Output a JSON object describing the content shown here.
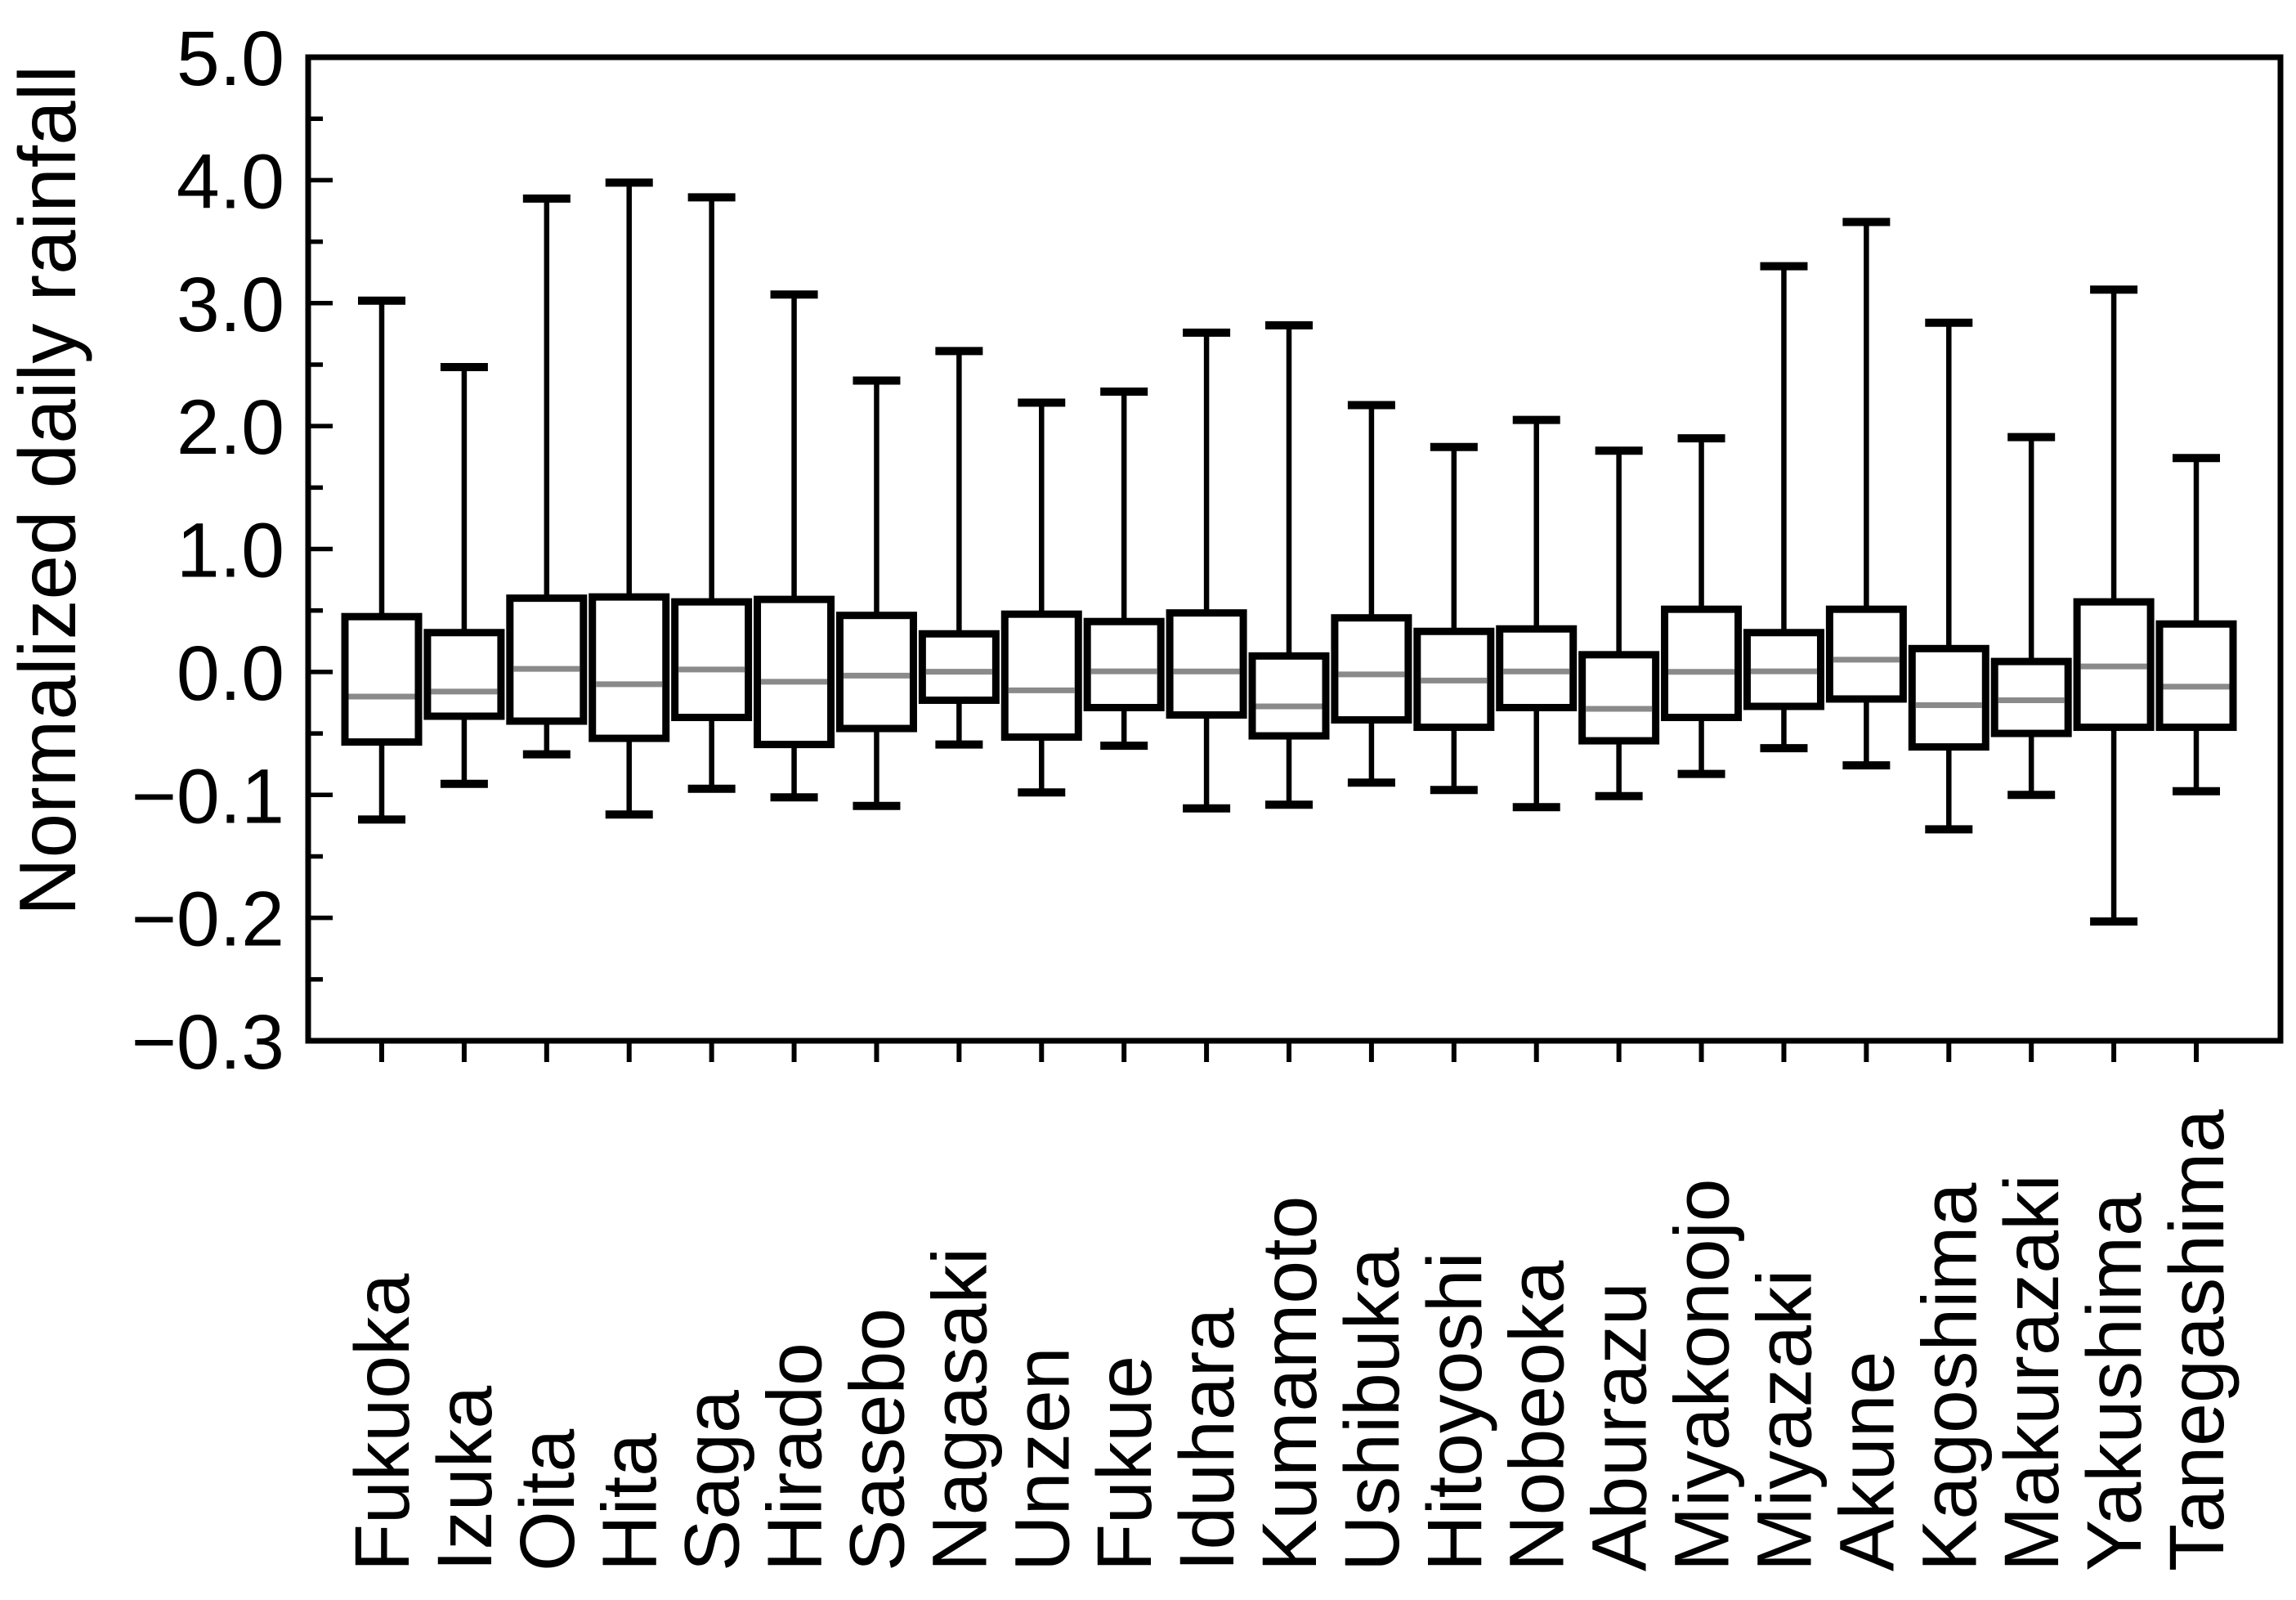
{
  "figure": {
    "background": "#ffffff",
    "frame_color": "#000000",
    "box_fill": "#ffffff",
    "box_stroke": "#000000",
    "median_color": "#8a8a8a",
    "whisker_color": "#000000"
  },
  "chart_data": {
    "type": "box",
    "title": "",
    "xlabel": "",
    "ylabel": "Normalized daily rainfall",
    "grid": false,
    "legend": "none",
    "y_tick_labels": [
      "5.0",
      "4.0",
      "3.0",
      "2.0",
      "1.0",
      "0.0",
      "−0.1",
      "−0.2",
      "−0.3"
    ],
    "y_tick_values": [
      5.0,
      4.0,
      3.0,
      2.0,
      1.0,
      0.0,
      -0.1,
      -0.2,
      -0.3
    ],
    "y_axis_note": "equally spaced tick divisions; 1.0 per division above zero, 0.1 per division below zero; minor tick at each half division",
    "categories": [
      "Fukuoka",
      "Izuka",
      "Oita",
      "Hita",
      "Saga",
      "Hirado",
      "Sasebo",
      "Nagasaki",
      "Unzen",
      "Fukue",
      "Iduhara",
      "Kumamoto",
      "Ushibuka",
      "Hitoyoshi",
      "Nobeoka",
      "Aburazu",
      "Miyakonojo",
      "Miyazaki",
      "Akune",
      "Kagoshima",
      "Makurazaki",
      "Yakushima",
      "Tanegashima"
    ],
    "boxes": [
      {
        "name": "Fukuoka",
        "whisker_low": -0.12,
        "q1": -0.057,
        "median": -0.02,
        "q3": 0.45,
        "whisker_high": 3.02
      },
      {
        "name": "Izuka",
        "whisker_low": -0.091,
        "q1": -0.036,
        "median": -0.016,
        "q3": 0.32,
        "whisker_high": 2.48
      },
      {
        "name": "Oita",
        "whisker_low": -0.067,
        "q1": -0.04,
        "median": 0.025,
        "q3": 0.6,
        "whisker_high": 3.85
      },
      {
        "name": "Hita",
        "whisker_low": -0.116,
        "q1": -0.054,
        "median": -0.01,
        "q3": 0.61,
        "whisker_high": 3.98
      },
      {
        "name": "Saga",
        "whisker_low": -0.095,
        "q1": -0.037,
        "median": 0.02,
        "q3": 0.57,
        "whisker_high": 3.86
      },
      {
        "name": "Hirado",
        "whisker_low": -0.102,
        "q1": -0.059,
        "median": -0.008,
        "q3": 0.59,
        "whisker_high": 3.07
      },
      {
        "name": "Sasebo",
        "whisker_low": -0.109,
        "q1": -0.046,
        "median": -0.003,
        "q3": 0.46,
        "whisker_high": 2.37
      },
      {
        "name": "Nagasaki",
        "whisker_low": -0.059,
        "q1": -0.023,
        "median": 0.002,
        "q3": 0.31,
        "whisker_high": 2.61
      },
      {
        "name": "Unzen",
        "whisker_low": -0.098,
        "q1": -0.053,
        "median": -0.015,
        "q3": 0.47,
        "whisker_high": 2.19
      },
      {
        "name": "Fukue",
        "whisker_low": -0.06,
        "q1": -0.029,
        "median": 0.005,
        "q3": 0.41,
        "whisker_high": 2.28
      },
      {
        "name": "Iduhara",
        "whisker_low": -0.111,
        "q1": -0.035,
        "median": 0.004,
        "q3": 0.48,
        "whisker_high": 2.76
      },
      {
        "name": "Kumamoto",
        "whisker_low": -0.108,
        "q1": -0.052,
        "median": -0.028,
        "q3": 0.13,
        "whisker_high": 2.82
      },
      {
        "name": "Ushibuka",
        "whisker_low": -0.09,
        "q1": -0.039,
        "median": -0.002,
        "q3": 0.44,
        "whisker_high": 2.17
      },
      {
        "name": "Hitoyoshi",
        "whisker_low": -0.096,
        "q1": -0.045,
        "median": -0.007,
        "q3": 0.33,
        "whisker_high": 1.83
      },
      {
        "name": "Nobeoka",
        "whisker_low": -0.11,
        "q1": -0.029,
        "median": 0.004,
        "q3": 0.35,
        "whisker_high": 2.05
      },
      {
        "name": "Aburazu",
        "whisker_low": -0.101,
        "q1": -0.056,
        "median": -0.03,
        "q3": 0.14,
        "whisker_high": 1.8
      },
      {
        "name": "Miyakonojo",
        "whisker_low": -0.083,
        "q1": -0.037,
        "median": 0.001,
        "q3": 0.51,
        "whisker_high": 1.9
      },
      {
        "name": "Miyazaki",
        "whisker_low": -0.062,
        "q1": -0.028,
        "median": 0.005,
        "q3": 0.32,
        "whisker_high": 3.3
      },
      {
        "name": "Akune",
        "whisker_low": -0.076,
        "q1": -0.022,
        "median": 0.1,
        "q3": 0.51,
        "whisker_high": 3.66
      },
      {
        "name": "Kagoshima",
        "whisker_low": -0.128,
        "q1": -0.061,
        "median": -0.027,
        "q3": 0.19,
        "whisker_high": 2.84
      },
      {
        "name": "Makurazaki",
        "whisker_low": -0.1,
        "q1": -0.05,
        "median": -0.023,
        "q3": 0.085,
        "whisker_high": 1.91
      },
      {
        "name": "Yakushima",
        "whisker_low": -0.203,
        "q1": -0.045,
        "median": 0.045,
        "q3": 0.57,
        "whisker_high": 3.11
      },
      {
        "name": "Tanegashima",
        "whisker_low": -0.097,
        "q1": -0.045,
        "median": -0.012,
        "q3": 0.39,
        "whisker_high": 1.74
      }
    ]
  }
}
